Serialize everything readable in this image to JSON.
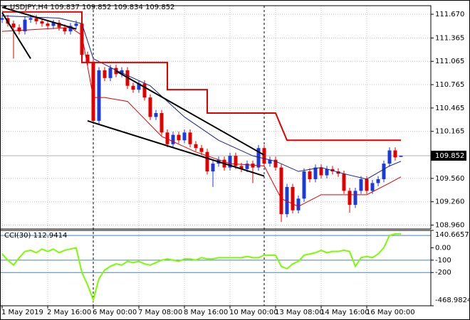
{
  "chart_data": [
    {
      "type": "candlestick",
      "title": "USDJPY,H4  109.837 109.852 109.834 109.852",
      "categories": [
        "1 May 2019",
        null,
        null,
        null,
        null,
        null,
        null,
        null,
        "2 May 16:00",
        null,
        null,
        null,
        null,
        null,
        null,
        null,
        "6 May 00:00",
        null,
        null,
        null,
        null,
        null,
        null,
        null,
        "7 May 08:00",
        null,
        null,
        null,
        null,
        null,
        null,
        null,
        "8 May 16:00",
        null,
        null,
        null,
        null,
        null,
        null,
        null,
        "10 May 00:00",
        null,
        null,
        null,
        null,
        null,
        null,
        null,
        "13 May 08:00",
        null,
        null,
        null,
        null,
        null,
        null,
        null,
        "14 May 16:00",
        null,
        null,
        null,
        null,
        null,
        null,
        null,
        "16 May 00:00",
        null,
        null,
        null,
        null,
        null,
        null
      ],
      "open": [
        111.6,
        111.62,
        111.55,
        111.5,
        111.45,
        111.6,
        111.62,
        111.58,
        111.55,
        111.52,
        111.56,
        111.5,
        111.45,
        111.52,
        111.55,
        111.15,
        111.05,
        110.3,
        110.95,
        110.85,
        110.98,
        110.9,
        110.95,
        110.75,
        110.7,
        110.78,
        110.6,
        110.35,
        110.4,
        110.15,
        110.0,
        110.12,
        110.05,
        110.15,
        110.0,
        109.95,
        109.9,
        109.65,
        109.75,
        109.8,
        109.7,
        109.85,
        109.72,
        109.68,
        109.75,
        109.7,
        109.95,
        109.75,
        109.8,
        109.7,
        109.1,
        109.45,
        109.15,
        109.3,
        109.65,
        109.55,
        109.7,
        109.6,
        109.68,
        109.65,
        109.62,
        109.4,
        109.22,
        109.4,
        109.55,
        109.4,
        109.5,
        109.55,
        109.75,
        109.92,
        109.837
      ],
      "high": [
        111.66,
        111.66,
        111.59,
        111.54,
        111.64,
        111.66,
        111.66,
        111.62,
        111.59,
        111.6,
        111.6,
        111.54,
        111.56,
        111.59,
        111.59,
        111.19,
        111.09,
        110.99,
        110.99,
        111.02,
        111.02,
        110.99,
        110.99,
        110.79,
        110.82,
        110.82,
        110.64,
        110.44,
        110.44,
        110.19,
        110.16,
        110.16,
        110.19,
        110.19,
        110.04,
        109.99,
        109.94,
        109.79,
        109.84,
        109.84,
        109.89,
        109.89,
        109.76,
        109.79,
        109.79,
        109.99,
        109.99,
        109.84,
        109.84,
        109.74,
        109.49,
        109.49,
        109.34,
        109.69,
        109.69,
        109.74,
        109.74,
        109.72,
        109.72,
        109.69,
        109.66,
        109.44,
        109.44,
        109.59,
        109.59,
        109.54,
        109.59,
        109.79,
        109.96,
        109.96,
        109.852
      ],
      "low": [
        111.56,
        111.51,
        111.1,
        111.41,
        111.41,
        111.56,
        111.54,
        111.51,
        111.48,
        111.48,
        111.46,
        111.41,
        111.41,
        111.48,
        111.11,
        111.01,
        110.26,
        110.26,
        110.81,
        110.81,
        110.86,
        110.86,
        110.71,
        110.66,
        110.66,
        110.56,
        110.31,
        110.31,
        110.11,
        109.96,
        109.96,
        110.01,
        110.01,
        109.96,
        109.91,
        109.86,
        109.61,
        109.45,
        109.71,
        109.66,
        109.66,
        109.68,
        109.64,
        109.64,
        109.5,
        109.66,
        109.71,
        109.71,
        109.66,
        109.0,
        109.06,
        109.11,
        109.11,
        109.26,
        109.51,
        109.51,
        109.56,
        109.56,
        109.61,
        109.58,
        109.36,
        109.12,
        109.18,
        109.36,
        109.36,
        109.36,
        109.46,
        109.51,
        109.71,
        109.79,
        109.834
      ],
      "close": [
        111.62,
        111.55,
        111.5,
        111.45,
        111.6,
        111.62,
        111.58,
        111.55,
        111.52,
        111.56,
        111.5,
        111.45,
        111.52,
        111.55,
        111.15,
        111.05,
        110.3,
        110.95,
        110.85,
        110.98,
        110.9,
        110.95,
        110.75,
        110.7,
        110.78,
        110.6,
        110.35,
        110.4,
        110.15,
        110.0,
        110.12,
        110.05,
        110.15,
        110.0,
        109.95,
        109.9,
        109.65,
        109.75,
        109.8,
        109.7,
        109.85,
        109.72,
        109.68,
        109.75,
        109.7,
        109.95,
        109.75,
        109.8,
        109.7,
        109.1,
        109.45,
        109.15,
        109.3,
        109.65,
        109.55,
        109.7,
        109.6,
        109.68,
        109.65,
        109.62,
        109.4,
        109.22,
        109.4,
        109.55,
        109.4,
        109.5,
        109.55,
        109.75,
        109.92,
        109.83,
        109.852
      ],
      "up_color": "#1c3bd6",
      "down_color": "#e00000",
      "current_price": 109.852,
      "ylim": [
        108.91,
        111.78
      ],
      "yticks": [
        {
          "value": 111.67,
          "label": "111.670"
        },
        111.365,
        111.065,
        110.765,
        110.465,
        110.165,
        {
          "value": 109.56,
          "label": "109.560"
        },
        {
          "value": 109.26,
          "label": "109.260"
        },
        {
          "value": 108.96,
          "label": "108.960"
        }
      ],
      "separators": [
        16,
        46
      ],
      "grid": true,
      "overlays": [
        {
          "color": "#1a237e",
          "width": 1,
          "x": [
            0,
            10,
            14,
            16,
            20,
            26,
            32,
            38,
            44,
            48,
            52,
            56,
            60,
            64,
            68,
            70
          ],
          "values": [
            111.65,
            111.62,
            111.55,
            111.1,
            110.95,
            110.75,
            110.35,
            110.05,
            109.85,
            109.78,
            109.65,
            109.7,
            109.62,
            109.55,
            109.72,
            109.78
          ]
        },
        {
          "color": "#e00000",
          "width": 1,
          "x": [
            0,
            12,
            14,
            16,
            18,
            22,
            28,
            34,
            40,
            46,
            49,
            52,
            56,
            60,
            64,
            68,
            70
          ],
          "values": [
            111.45,
            111.5,
            111.4,
            110.6,
            110.6,
            110.55,
            110.1,
            109.9,
            109.75,
            109.72,
            109.3,
            109.2,
            109.35,
            109.35,
            109.35,
            109.5,
            109.58
          ]
        },
        {
          "color": "#e00000",
          "width": 2,
          "x": [
            0,
            14,
            14,
            29,
            29,
            36,
            36,
            48,
            50,
            70
          ],
          "values": [
            111.7,
            111.7,
            111.05,
            111.05,
            110.7,
            110.7,
            110.4,
            110.4,
            110.05,
            110.05
          ]
        },
        {
          "color": "#000000",
          "width": 2,
          "x": [
            0,
            5
          ],
          "values": [
            111.69,
            111.1
          ]
        },
        {
          "color": "#000000",
          "width": 2,
          "x": [
            0,
            13
          ],
          "values": [
            111.76,
            111.48
          ]
        },
        {
          "color": "#000000",
          "width": 2,
          "x": [
            20,
            46
          ],
          "values": [
            110.94,
            109.86
          ]
        },
        {
          "color": "#000000",
          "width": 2,
          "x": [
            15,
            46
          ],
          "values": [
            110.3,
            109.59
          ]
        }
      ]
    },
    {
      "type": "line",
      "title": "CCI(30) 112.9414",
      "color": "#7cfc00",
      "values": [
        -50,
        -100,
        -140,
        -80,
        -30,
        -20,
        -40,
        -10,
        -30,
        -10,
        -40,
        -20,
        -10,
        0,
        -200,
        -300,
        -420,
        -250,
        -180,
        -150,
        -130,
        -140,
        -110,
        -120,
        -110,
        -130,
        -140,
        -120,
        -100,
        -90,
        -100,
        -110,
        -90,
        -90,
        -100,
        -80,
        -90,
        -90,
        -80,
        -80,
        -80,
        -80,
        -80,
        -70,
        -80,
        -80,
        -60,
        -60,
        -60,
        -150,
        -170,
        -130,
        -110,
        -60,
        -50,
        -40,
        -20,
        -40,
        -30,
        -30,
        -20,
        -30,
        -150,
        -80,
        -70,
        -80,
        -50,
        0,
        100,
        112,
        112.9414
      ],
      "ylim": [
        -468.9824,
        140.6657
      ],
      "yticks": [
        140.6657,
        {
          "value": 0,
          "label": "0.00"
        },
        -100,
        -200,
        -468.9824
      ],
      "levels": [
        100,
        -100,
        -200
      ],
      "level_color": "#4682b4"
    }
  ]
}
